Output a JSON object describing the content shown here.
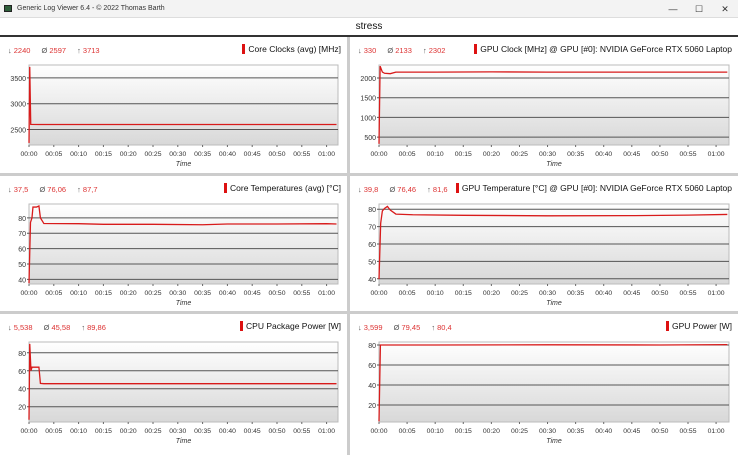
{
  "window": {
    "title": "Generic Log Viewer 6.4 - © 2022 Thomas Barth",
    "minimize": "—",
    "maximize": "☐",
    "close": "✕"
  },
  "header": {
    "title": "stress"
  },
  "colors": {
    "series": "#d81b1b",
    "grid": "#555555"
  },
  "x_axis": {
    "label": "Time",
    "ticks": [
      "00:00",
      "00:05",
      "00:10",
      "00:15",
      "00:20",
      "00:25",
      "00:30",
      "00:35",
      "00:40",
      "00:45",
      "00:50",
      "00:55",
      "01:00"
    ],
    "range_min": [
      0,
      62.3
    ]
  },
  "panels": [
    {
      "title": "Core Clocks (avg) [MHz]",
      "min": "2240",
      "avg": "2597",
      "max": "3713",
      "ylim": [
        2200,
        3750
      ],
      "yticks": [
        2500,
        3000,
        3500
      ],
      "points": [
        [
          0,
          2240
        ],
        [
          0.15,
          3713
        ],
        [
          0.35,
          2600
        ],
        [
          2,
          2597
        ],
        [
          62,
          2597
        ]
      ]
    },
    {
      "title": "GPU Clock [MHz] @ GPU [#0]: NVIDIA GeForce RTX 5060 Laptop",
      "min": "330",
      "avg": "2133",
      "max": "2302",
      "ylim": [
        300,
        2330
      ],
      "yticks": [
        500,
        1000,
        1500,
        2000
      ],
      "points": [
        [
          0,
          330
        ],
        [
          0.2,
          2302
        ],
        [
          0.6,
          2150
        ],
        [
          1,
          2120
        ],
        [
          2,
          2110
        ],
        [
          3,
          2150
        ],
        [
          10,
          2150
        ],
        [
          20,
          2155
        ],
        [
          30,
          2150
        ],
        [
          40,
          2150
        ],
        [
          50,
          2150
        ],
        [
          62,
          2150
        ]
      ]
    },
    {
      "title": "Core Temperatures (avg) [°C]",
      "min": "37,5",
      "avg": "76,06",
      "max": "87,7",
      "ylim": [
        37,
        89
      ],
      "yticks": [
        40,
        50,
        60,
        70,
        80
      ],
      "points": [
        [
          0,
          37.5
        ],
        [
          0.3,
          77
        ],
        [
          0.6,
          80
        ],
        [
          0.8,
          87
        ],
        [
          1.5,
          87
        ],
        [
          2,
          87.7
        ],
        [
          2.3,
          80
        ],
        [
          3,
          76.3
        ],
        [
          10,
          76.2
        ],
        [
          15,
          75.8
        ],
        [
          25,
          75.8
        ],
        [
          35,
          75.5
        ],
        [
          40,
          76
        ],
        [
          50,
          76
        ],
        [
          60,
          76.2
        ],
        [
          62,
          76
        ]
      ]
    },
    {
      "title": "GPU Temperature [°C] @ GPU [#0]: NVIDIA GeForce RTX 5060 Laptop",
      "min": "39,8",
      "avg": "76,46",
      "max": "81,6",
      "ylim": [
        37,
        83
      ],
      "yticks": [
        40,
        50,
        60,
        70,
        80
      ],
      "points": [
        [
          0,
          39.8
        ],
        [
          0.3,
          72
        ],
        [
          0.6,
          79
        ],
        [
          1,
          80.5
        ],
        [
          1.5,
          81.6
        ],
        [
          2,
          79.5
        ],
        [
          3,
          77.2
        ],
        [
          6,
          76.8
        ],
        [
          15,
          76.5
        ],
        [
          30,
          76.2
        ],
        [
          45,
          76.3
        ],
        [
          55,
          76.6
        ],
        [
          62,
          77
        ]
      ]
    },
    {
      "title": "CPU Package Power [W]",
      "min": "5,538",
      "avg": "45,58",
      "max": "89,86",
      "ylim": [
        3,
        92
      ],
      "yticks": [
        20,
        40,
        60,
        80
      ],
      "points": [
        [
          0,
          5.5
        ],
        [
          0.15,
          89.86
        ],
        [
          0.4,
          60
        ],
        [
          0.6,
          64
        ],
        [
          2,
          64
        ],
        [
          2.3,
          46
        ],
        [
          3,
          45.6
        ],
        [
          62,
          45.6
        ]
      ]
    },
    {
      "title": "GPU Power [W]",
      "min": "3,599",
      "avg": "79,45",
      "max": "80,4",
      "ylim": [
        3,
        83
      ],
      "yticks": [
        20,
        40,
        60,
        80
      ],
      "points": [
        [
          0,
          3.6
        ],
        [
          0.25,
          80
        ],
        [
          10,
          80
        ],
        [
          30,
          80.2
        ],
        [
          50,
          80
        ],
        [
          62,
          80.4
        ]
      ]
    }
  ]
}
